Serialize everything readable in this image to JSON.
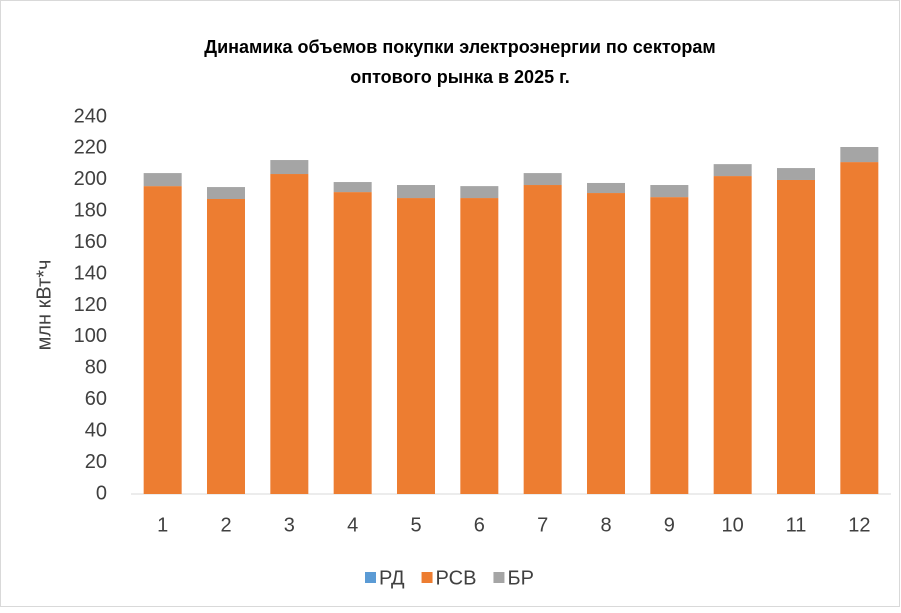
{
  "chart_data": {
    "type": "stacked_bar",
    "title": [
      "Динамика объемов покупки электроэнергии по секторам",
      "оптового рынка в 2025 г."
    ],
    "y_label": "млн кВт*ч",
    "categories": [
      "1",
      "2",
      "3",
      "4",
      "5",
      "6",
      "7",
      "8",
      "9",
      "10",
      "11",
      "12"
    ],
    "series": [
      {
        "name": "РД",
        "color": "#5b9bd5",
        "values": [
          0,
          0,
          0,
          0,
          0,
          0,
          0,
          0,
          0,
          0,
          0,
          0
        ]
      },
      {
        "name": "РСВ",
        "color": "#ed7d31",
        "values": [
          196,
          187.8,
          203.7,
          192.2,
          188.4,
          188.4,
          196.7,
          191.6,
          189,
          202.4,
          199.9,
          211.3
        ]
      },
      {
        "name": "БР",
        "color": "#a5a5a5",
        "values": [
          8.3,
          7.6,
          8.9,
          6.4,
          8.3,
          7.6,
          7.6,
          6.4,
          7.7,
          7.6,
          7.6,
          9.6
        ]
      }
    ],
    "ylim": [
      0,
      240
    ],
    "yticks": [
      0,
      20,
      40,
      60,
      80,
      100,
      120,
      140,
      160,
      180,
      200,
      220,
      240
    ],
    "grid": false,
    "legend": "bottom"
  }
}
